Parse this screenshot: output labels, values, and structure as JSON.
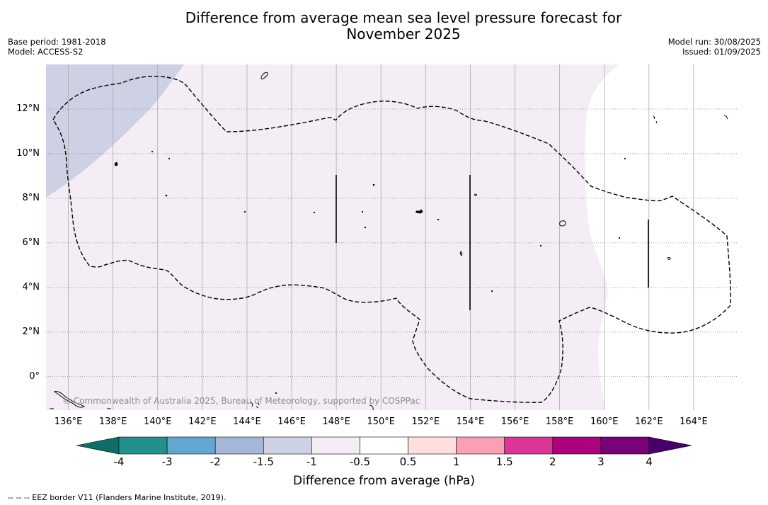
{
  "title_line1": "Difference from average mean sea level pressure forecast for",
  "title_line2": "November 2025",
  "meta_left": {
    "base_period": "Base period: 1981-2018",
    "model": "Model: ACCESS-S2"
  },
  "meta_right": {
    "model_run": "Model run: 30/08/2025",
    "issued": "Issued: 01/09/2025"
  },
  "map": {
    "lon_range": [
      135,
      166
    ],
    "lat_range": [
      -1.5,
      14
    ],
    "lon_ticks": [
      136,
      138,
      140,
      142,
      144,
      146,
      148,
      150,
      152,
      154,
      156,
      158,
      160,
      162,
      164
    ],
    "lon_labels": [
      "136°E",
      "138°E",
      "140°E",
      "142°E",
      "144°E",
      "146°E",
      "148°E",
      "150°E",
      "152°E",
      "154°E",
      "156°E",
      "158°E",
      "160°E",
      "162°E",
      "164°E"
    ],
    "lat_ticks": [
      12,
      10,
      8,
      6,
      4,
      2,
      0
    ],
    "lat_labels": [
      "12°N",
      "10°N",
      "8°N",
      "6°N",
      "4°N",
      "2°N",
      "0°"
    ],
    "gridlines": true,
    "colors": {
      "band_minus_1_5_to_minus_1": "#ced0e4",
      "band_minus_1_to_minus_0_5": "#f4edf5",
      "band_minus_0_5_to_0_5": "#ffffff"
    }
  },
  "copyright": "© Commonwealth of Australia 2025, Bureau of Meteorology, supported by COSPPac",
  "colorbar": {
    "labels": [
      "-4",
      "-3",
      "-2",
      "-1.5",
      "-1",
      "-0.5",
      "0.5",
      "1",
      "1.5",
      "2",
      "3",
      "4"
    ],
    "colors": [
      "#0b6f67",
      "#21918c",
      "#63a6d1",
      "#a5b7d6",
      "#ced0e4",
      "#f4edf5",
      "#ffffff",
      "#fde0dd",
      "#fa9fb5",
      "#dd3497",
      "#ae017e",
      "#7a0177",
      "#49006a"
    ],
    "title": "Difference from average (hPa)"
  },
  "footnote": "-- -- -- EEZ border V11 (Flanders Marine Institute, 2019)."
}
